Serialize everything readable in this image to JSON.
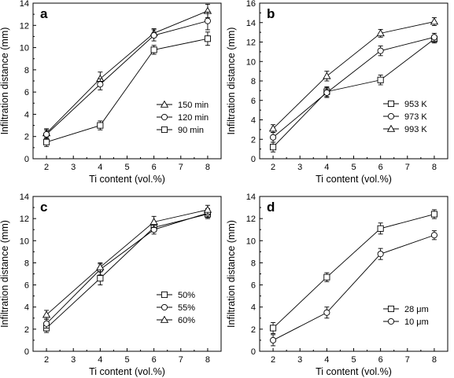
{
  "chart_data": [
    {
      "panel_label": "a",
      "type": "line",
      "xlabel": "Ti content (vol.%)",
      "ylabel": "Infiltration distance (mm)",
      "x": [
        2,
        4,
        6,
        8
      ],
      "xlim": [
        1.5,
        8.5
      ],
      "xticks": [
        2,
        3,
        4,
        5,
        6,
        7,
        8
      ],
      "ylim": [
        0,
        14
      ],
      "yticks": [
        0,
        2,
        4,
        6,
        8,
        10,
        12,
        14
      ],
      "legend_position": "bottom-right",
      "series": [
        {
          "name": "150 min",
          "marker": "triangle",
          "values": [
            2.3,
            7.2,
            11.3,
            13.3
          ],
          "errors": [
            0.4,
            0.6,
            0.4,
            0.6
          ]
        },
        {
          "name": "120 min",
          "marker": "circle",
          "values": [
            2.2,
            6.7,
            11.1,
            12.4
          ],
          "errors": [
            0.4,
            0.5,
            0.5,
            0.8
          ]
        },
        {
          "name": "90 min",
          "marker": "square",
          "values": [
            1.5,
            3.0,
            9.8,
            10.8
          ],
          "errors": [
            0.4,
            0.4,
            0.4,
            0.6
          ]
        }
      ]
    },
    {
      "panel_label": "b",
      "type": "line",
      "xlabel": "Ti content (vol.%)",
      "ylabel": "Infiltration distance (mm)",
      "x": [
        2,
        4,
        6,
        8
      ],
      "xlim": [
        1.5,
        8.5
      ],
      "xticks": [
        2,
        3,
        4,
        5,
        6,
        7,
        8
      ],
      "ylim": [
        0,
        16
      ],
      "yticks": [
        0,
        2,
        4,
        6,
        8,
        10,
        12,
        14,
        16
      ],
      "legend_position": "bottom-right",
      "series": [
        {
          "name": "953 K",
          "marker": "square",
          "values": [
            1.2,
            6.9,
            8.1,
            12.3
          ],
          "errors": [
            0.5,
            0.5,
            0.5,
            0.4
          ]
        },
        {
          "name": "973 K",
          "marker": "circle",
          "values": [
            2.2,
            6.8,
            11.1,
            12.5
          ],
          "errors": [
            0.5,
            0.5,
            0.5,
            0.4
          ]
        },
        {
          "name": "993 K",
          "marker": "triangle",
          "values": [
            3.1,
            8.5,
            12.9,
            14.1
          ],
          "errors": [
            0.4,
            0.5,
            0.4,
            0.4
          ]
        }
      ]
    },
    {
      "panel_label": "c",
      "type": "line",
      "xlabel": "Ti content (vol.%)",
      "ylabel": "Infiltration distance (mm)",
      "x": [
        2,
        4,
        6,
        8
      ],
      "xlim": [
        1.5,
        8.5
      ],
      "xticks": [
        2,
        3,
        4,
        5,
        6,
        7,
        8
      ],
      "ylim": [
        0,
        14
      ],
      "yticks": [
        0,
        2,
        4,
        6,
        8,
        10,
        12,
        14
      ],
      "legend_position": "bottom-right",
      "series": [
        {
          "name": "50%",
          "marker": "square",
          "values": [
            2.1,
            6.6,
            11.2,
            12.4
          ],
          "errors": [
            0.4,
            0.6,
            0.4,
            0.4
          ]
        },
        {
          "name": "55%",
          "marker": "circle",
          "values": [
            2.5,
            7.4,
            11.0,
            12.5
          ],
          "errors": [
            0.4,
            0.5,
            0.4,
            0.4
          ]
        },
        {
          "name": "60%",
          "marker": "triangle",
          "values": [
            3.3,
            7.6,
            11.7,
            12.8
          ],
          "errors": [
            0.4,
            0.4,
            0.5,
            0.4
          ]
        }
      ]
    },
    {
      "panel_label": "d",
      "type": "line",
      "xlabel": "Ti content (vol.%)",
      "ylabel": "Infiltration distance (mm)",
      "x": [
        2,
        4,
        6,
        8
      ],
      "xlim": [
        1.5,
        8.5
      ],
      "xticks": [
        2,
        3,
        4,
        5,
        6,
        7,
        8
      ],
      "ylim": [
        0,
        14
      ],
      "yticks": [
        0,
        2,
        4,
        6,
        8,
        10,
        12,
        14
      ],
      "legend_position": "bottom-right",
      "series": [
        {
          "name": "28 μm",
          "marker": "square",
          "values": [
            2.1,
            6.7,
            11.1,
            12.4
          ],
          "errors": [
            0.5,
            0.4,
            0.5,
            0.4
          ]
        },
        {
          "name": "10 μm",
          "marker": "circle",
          "values": [
            1.0,
            3.5,
            8.8,
            10.5
          ],
          "errors": [
            0.5,
            0.5,
            0.5,
            0.4
          ]
        }
      ]
    }
  ]
}
